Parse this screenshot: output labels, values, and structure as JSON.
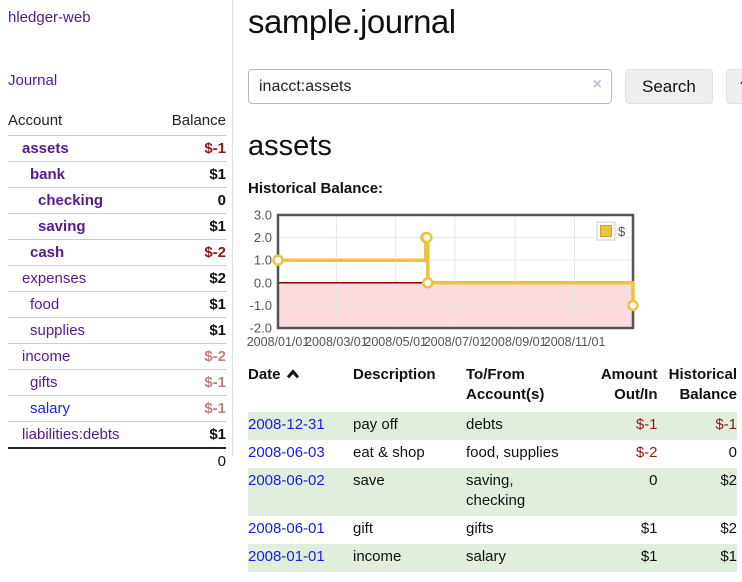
{
  "colors": {
    "link_purple": "#551a8b",
    "link_blue": "#1c1ce0",
    "negative_strong": "#8b1a1a",
    "negative_muted": "#c38181",
    "row_green": "#e2eedd",
    "clear_icon": "#c5bedb",
    "chart_line": "#edc240",
    "chart_negative_fill": "#fcdcdc",
    "chart_zero_line": "#8b0000",
    "chart_grid": "#e8e8e8",
    "chart_border": "#545454",
    "chart_text": "#545454"
  },
  "sidebar": {
    "brand": "hledger-web",
    "journal_link": "Journal",
    "account_header": "Account",
    "balance_header": "Balance",
    "accounts": [
      {
        "name": "assets",
        "depth": 1,
        "matched": true,
        "balance": "$-1",
        "balance_style": "neg-strong",
        "link": "purple"
      },
      {
        "name": "bank",
        "depth": 2,
        "matched": true,
        "balance": "$1",
        "balance_style": "plain",
        "link": "purple"
      },
      {
        "name": "checking",
        "depth": 3,
        "matched": true,
        "balance": "0",
        "balance_style": "plain",
        "link": "purple"
      },
      {
        "name": "saving",
        "depth": 3,
        "matched": true,
        "balance": "$1",
        "balance_style": "plain",
        "link": "purple"
      },
      {
        "name": "cash",
        "depth": 2,
        "matched": true,
        "balance": "$-2",
        "balance_style": "neg-strong",
        "link": "purple"
      },
      {
        "name": "expenses",
        "depth": 1,
        "matched": false,
        "balance": "$2",
        "balance_style": "plain",
        "link": "purple"
      },
      {
        "name": "food",
        "depth": 2,
        "matched": false,
        "balance": "$1",
        "balance_style": "plain",
        "link": "purple"
      },
      {
        "name": "supplies",
        "depth": 2,
        "matched": false,
        "balance": "$1",
        "balance_style": "plain",
        "link": "purple"
      },
      {
        "name": "income",
        "depth": 1,
        "matched": false,
        "balance": "$-2",
        "balance_style": "neg-muted",
        "link": "purple"
      },
      {
        "name": "gifts",
        "depth": 2,
        "matched": false,
        "balance": "$-1",
        "balance_style": "neg-muted",
        "link": "purple"
      },
      {
        "name": "salary",
        "depth": 2,
        "matched": false,
        "balance": "$-1",
        "balance_style": "neg-muted",
        "link": "blue"
      },
      {
        "name": "liabilities:debts",
        "depth": 1,
        "matched": false,
        "balance": "$1",
        "balance_style": "plain",
        "link": "purple"
      }
    ],
    "total": "0"
  },
  "main": {
    "title": "sample.journal",
    "search": {
      "value": "inacct:assets",
      "clear": "×",
      "search_button": "Search",
      "help_button": "?"
    },
    "account_heading": "assets",
    "chart_title": "Historical Balance:"
  },
  "chart_data": {
    "type": "line",
    "step": true,
    "title": "Historical Balance",
    "series": [
      {
        "name": "$",
        "points": [
          [
            "2008-01-01",
            1
          ],
          [
            "2008-06-01",
            2
          ],
          [
            "2008-06-02",
            2
          ],
          [
            "2008-06-03",
            0
          ],
          [
            "2008-12-31",
            -1
          ]
        ]
      }
    ],
    "ylim": [
      -2,
      3
    ],
    "y_ticks": [
      3,
      2,
      1,
      0,
      -1,
      -2
    ],
    "x_ticks": [
      "2008/01/01",
      "2008/03/01",
      "2008/05/01",
      "2008/07/01",
      "2008/09/01",
      "2008/11/01"
    ],
    "x_range": [
      "2008-01-01",
      "2008-12-31"
    ],
    "grid": true,
    "legend": {
      "position": "top-right",
      "label": "$"
    },
    "negative_region_shaded": true,
    "zero_line": true
  },
  "register": {
    "headers": {
      "date": "Date",
      "description": "Description",
      "account_line1": "To/From",
      "account_line2": "Account(s)",
      "amount_line1": "Amount",
      "amount_line2": "Out/In",
      "balance_line1": "Historical",
      "balance_line2": "Balance"
    },
    "rows": [
      {
        "date": "2008-12-31",
        "description": "pay off",
        "accounts": "debts",
        "amount": "$-1",
        "amount_neg": true,
        "balance": "$-1",
        "balance_neg": true,
        "shaded": true
      },
      {
        "date": "2008-06-03",
        "description": "eat & shop",
        "accounts": "food, supplies",
        "amount": "$-2",
        "amount_neg": true,
        "balance": "0",
        "balance_neg": false,
        "shaded": false
      },
      {
        "date": "2008-06-02",
        "description": "save",
        "accounts": "saving, checking",
        "amount": "0",
        "amount_neg": false,
        "balance": "$2",
        "balance_neg": false,
        "shaded": true
      },
      {
        "date": "2008-06-01",
        "description": "gift",
        "accounts": "gifts",
        "amount": "$1",
        "amount_neg": false,
        "balance": "$2",
        "balance_neg": false,
        "shaded": false
      },
      {
        "date": "2008-01-01",
        "description": "income",
        "accounts": "salary",
        "amount": "$1",
        "amount_neg": false,
        "balance": "$1",
        "balance_neg": false,
        "shaded": true
      }
    ]
  }
}
